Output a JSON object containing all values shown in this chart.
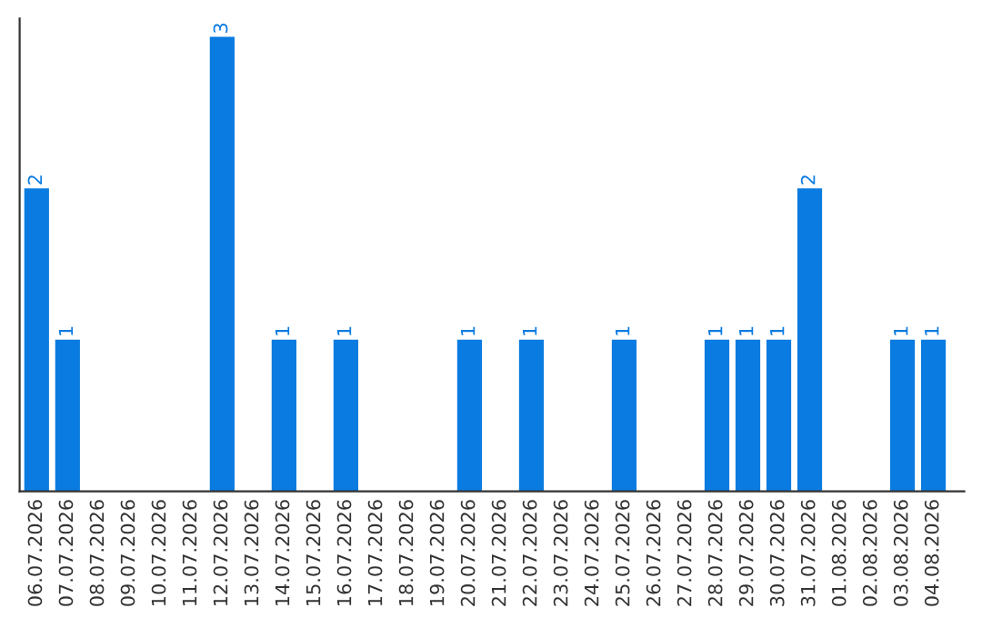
{
  "chart_data": {
    "type": "bar",
    "categories": [
      "06.07.2026",
      "07.07.2026",
      "08.07.2026",
      "09.07.2026",
      "10.07.2026",
      "11.07.2026",
      "12.07.2026",
      "13.07.2026",
      "14.07.2026",
      "15.07.2026",
      "16.07.2026",
      "17.07.2026",
      "18.07.2026",
      "19.07.2026",
      "20.07.2026",
      "21.07.2026",
      "22.07.2026",
      "23.07.2026",
      "24.07.2026",
      "25.07.2026",
      "26.07.2026",
      "27.07.2026",
      "28.07.2026",
      "29.07.2026",
      "30.07.2026",
      "31.07.2026",
      "01.08.2026",
      "02.08.2026",
      "03.08.2026",
      "04.08.2026"
    ],
    "values": [
      2,
      1,
      0,
      0,
      0,
      0,
      3,
      0,
      1,
      0,
      1,
      0,
      0,
      0,
      1,
      0,
      1,
      0,
      0,
      1,
      0,
      0,
      1,
      1,
      1,
      2,
      0,
      0,
      1,
      1
    ],
    "value_labels": [
      "2",
      "1",
      null,
      null,
      null,
      null,
      "3",
      null,
      "1",
      null,
      "1",
      null,
      null,
      null,
      "1",
      null,
      "1",
      null,
      null,
      "1",
      null,
      null,
      "1",
      "1",
      "1",
      "2",
      null,
      null,
      "1",
      "1"
    ],
    "color": "#0a7be0",
    "tick_labels": "x"
  }
}
